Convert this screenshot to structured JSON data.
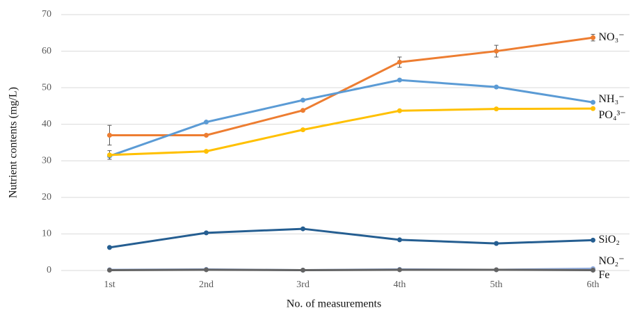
{
  "chart_data": {
    "type": "line",
    "x_label": "No. of measurements",
    "y_label": "Nutrient contents (mg/L)",
    "categories": [
      "1st",
      "2nd",
      "3rd",
      "4th",
      "5th",
      "6th"
    ],
    "ylim": [
      0,
      70
    ],
    "yticks": [
      0,
      10,
      20,
      30,
      40,
      50,
      60,
      70
    ],
    "grid": true,
    "series": [
      {
        "name": "NO₃⁻",
        "color": "#ED7D31",
        "values": [
          37,
          37,
          43.8,
          57,
          60,
          63.7
        ],
        "errors": [
          2.7,
          null,
          null,
          1.4,
          1.6,
          0.9
        ]
      },
      {
        "name": "NH₃⁻",
        "color": "#5B9BD5",
        "values": [
          31.3,
          40.6,
          46.6,
          52.1,
          50.2,
          46
        ]
      },
      {
        "name": "PO₄³⁻",
        "color": "#FFC000",
        "values": [
          31.6,
          32.6,
          38.5,
          43.7,
          44.2,
          44.3
        ],
        "errors": [
          1.2,
          null,
          null,
          null,
          null,
          null
        ]
      },
      {
        "name": "SiO₂",
        "color": "#255E91",
        "values": [
          6.3,
          10.3,
          11.4,
          8.4,
          7.4,
          8.3
        ]
      },
      {
        "name": "NO₂⁻",
        "color": "#8FAADC",
        "values": [
          0.2,
          0.3,
          0.1,
          0.3,
          0.2,
          0.5
        ]
      },
      {
        "name": "Fe",
        "color": "#636363",
        "values": [
          0.1,
          0.2,
          0.1,
          0.2,
          0.2,
          0.1
        ]
      }
    ]
  }
}
